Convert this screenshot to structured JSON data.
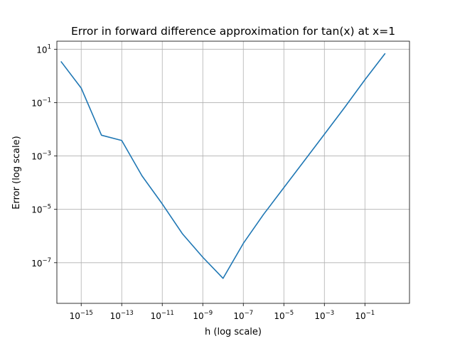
{
  "chart_data": {
    "type": "line",
    "title": "Error in forward difference approximation for tan(x) at x=1",
    "xlabel": "h (log scale)",
    "ylabel": "Error (log scale)",
    "xscale": "log",
    "yscale": "log",
    "xlim": [
      1e-16,
      10
    ],
    "ylim": [
      3e-09,
      20
    ],
    "grid": true,
    "xticks": [
      {
        "value": 1e-15,
        "base": "10",
        "exp": "−15"
      },
      {
        "value": 1e-13,
        "base": "10",
        "exp": "−13"
      },
      {
        "value": 1e-11,
        "base": "10",
        "exp": "−11"
      },
      {
        "value": 1e-09,
        "base": "10",
        "exp": "−9"
      },
      {
        "value": 1e-07,
        "base": "10",
        "exp": "−7"
      },
      {
        "value": 1e-05,
        "base": "10",
        "exp": "−5"
      },
      {
        "value": 0.001,
        "base": "10",
        "exp": "−3"
      },
      {
        "value": 0.1,
        "base": "10",
        "exp": "−1"
      }
    ],
    "yticks": [
      {
        "value": 10,
        "base": "10",
        "exp": "1"
      },
      {
        "value": 0.1,
        "base": "10",
        "exp": "−1"
      },
      {
        "value": 0.001,
        "base": "10",
        "exp": "−3"
      },
      {
        "value": 1e-05,
        "base": "10",
        "exp": "−5"
      },
      {
        "value": 1e-07,
        "base": "10",
        "exp": "−7"
      }
    ],
    "series": [
      {
        "color": "#1f77b4",
        "x": [
          1e-16,
          1e-15,
          1e-14,
          1e-13,
          1e-12,
          1e-11,
          1e-10,
          1e-09,
          1e-08,
          1e-07,
          1e-06,
          1e-05,
          0.0001,
          0.001,
          0.01,
          0.1,
          1
        ],
        "y": [
          3.5,
          0.35,
          0.006,
          0.0038,
          0.00018,
          1.6e-05,
          1.2e-06,
          1.6e-07,
          2.6e-08,
          5.3e-07,
          6.5e-06,
          6.5e-05,
          0.00065,
          0.0065,
          0.066,
          0.72,
          7.0
        ]
      }
    ]
  }
}
